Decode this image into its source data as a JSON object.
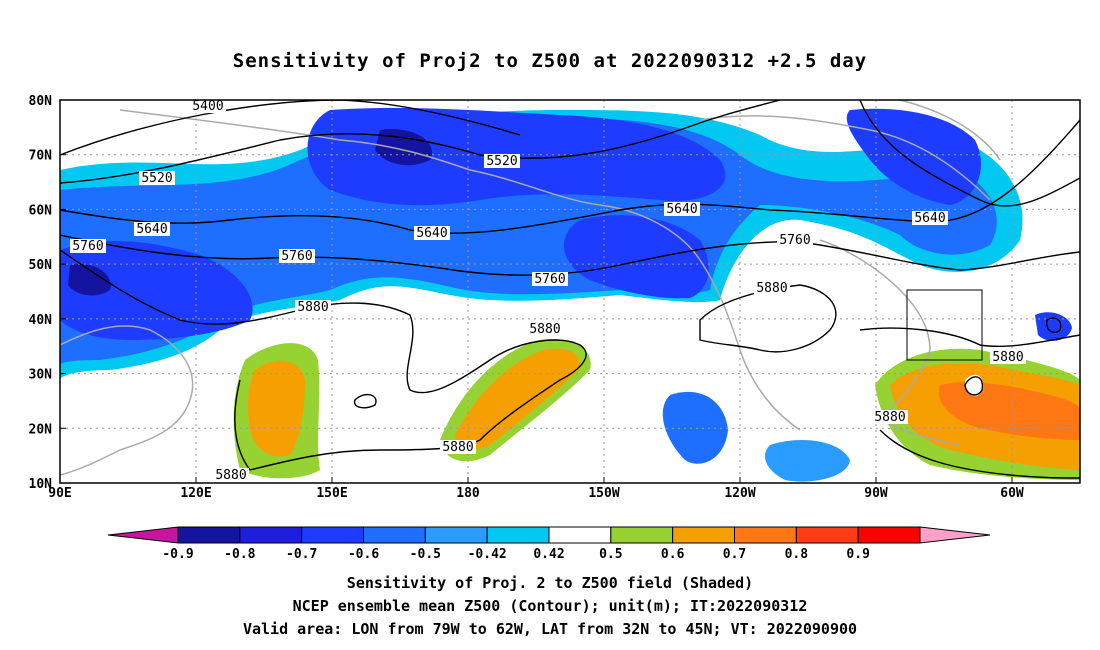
{
  "title": "Sensitivity of Proj2 to Z500 at 2022090312 +2.5 day",
  "lat_labels": [
    "80N",
    "70N",
    "60N",
    "50N",
    "40N",
    "30N",
    "20N",
    "10N"
  ],
  "lon_labels": [
    "90E",
    "120E",
    "150E",
    "180",
    "150W",
    "120W",
    "90W",
    "60W"
  ],
  "contour_labels": [
    "5400",
    "5520",
    "5520",
    "5640",
    "5640",
    "5640",
    "5640",
    "5760",
    "5760",
    "5760",
    "5760",
    "5880",
    "5880",
    "5880",
    "5880",
    "5880",
    "5880",
    "5880"
  ],
  "colorbar": {
    "labels": [
      "-0.9",
      "-0.8",
      "-0.7",
      "-0.6",
      "-0.5",
      "-0.42",
      "0.42",
      "0.5",
      "0.6",
      "0.7",
      "0.8",
      "0.9"
    ],
    "colors": [
      "#c8169c",
      "#1414a0",
      "#1e1edc",
      "#1e3cff",
      "#1e6eff",
      "#2a9cff",
      "#00c8f0",
      "#ffffff",
      "#96d232",
      "#f5a000",
      "#ff7814",
      "#ff3c14",
      "#ff0000",
      "#ffa0c8"
    ]
  },
  "captions": [
    "Sensitivity of Proj. 2 to Z500 field (Shaded)",
    "NCEP ensemble mean Z500 (Contour); unit(m); IT:2022090312",
    "Valid area: LON from 79W to 62W, LAT from 32N to 45N; VT: 2022090900"
  ]
}
